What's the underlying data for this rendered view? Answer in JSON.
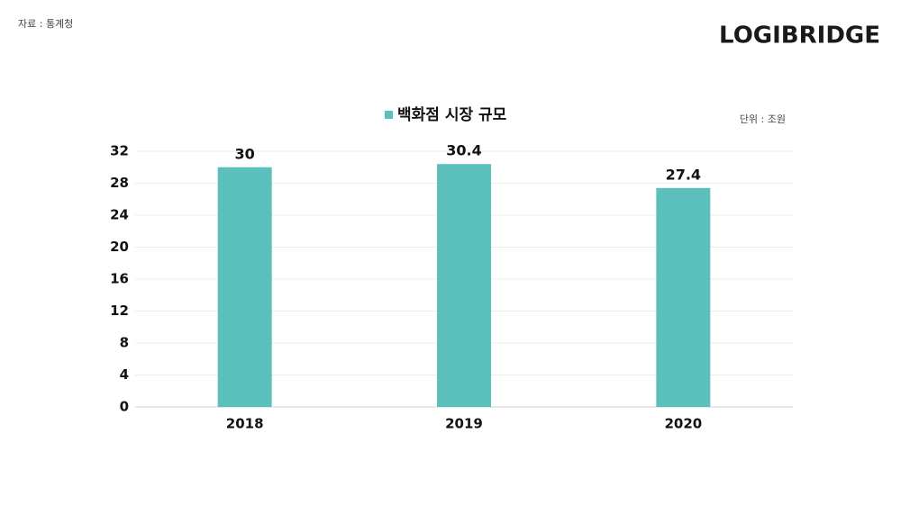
{
  "source": "자료 : 통계청",
  "logo": "LOGIBRIDGE",
  "unit": "단위 : 조원",
  "chart_data": {
    "type": "bar",
    "categories": [
      "2018",
      "2019",
      "2020"
    ],
    "series": [
      {
        "name": "백화점 시장 규모",
        "color": "#5bc0bb",
        "values": [
          30,
          30.4,
          27.4
        ]
      }
    ],
    "ylim": [
      0,
      32
    ],
    "yticks": [
      0,
      4,
      8,
      12,
      16,
      20,
      24,
      28,
      32
    ],
    "grid": true,
    "legend": "top"
  }
}
